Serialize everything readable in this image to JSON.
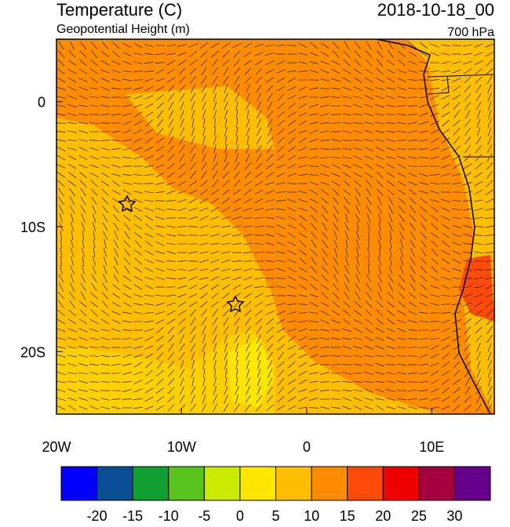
{
  "header": {
    "title": "Temperature (C)",
    "subtitle": "Geopotential Height (m)",
    "date": "2018-10-18_00",
    "level": "700 hPa"
  },
  "map": {
    "lonlim": [
      -20,
      15
    ],
    "latlim": [
      -25,
      5
    ],
    "lon_ticks": [
      {
        "value": -20,
        "label": "20W"
      },
      {
        "value": -10,
        "label": "10W"
      },
      {
        "value": 0,
        "label": "0"
      },
      {
        "value": 10,
        "label": "10E"
      }
    ],
    "lat_ticks": [
      {
        "value": 0,
        "label": "0"
      },
      {
        "value": -10,
        "label": "10S"
      },
      {
        "value": -20,
        "label": "20S"
      }
    ]
  },
  "colorbar": {
    "levels": [
      -20,
      -15,
      -10,
      -5,
      0,
      5,
      10,
      15,
      20,
      25,
      30
    ],
    "colors": [
      "#0000ff",
      "#0a4f96",
      "#10a032",
      "#5ac31e",
      "#c8eb00",
      "#ffe600",
      "#ffbe00",
      "#ff8c00",
      "#ff4b0a",
      "#f00000",
      "#a5003c",
      "#64008c"
    ]
  }
}
